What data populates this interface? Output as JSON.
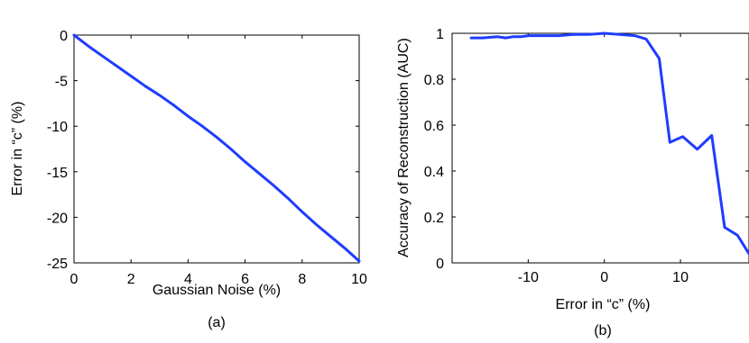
{
  "chart_data": [
    {
      "type": "line",
      "caption": "(a)",
      "xlabel": "Gaussian Noise (%)",
      "ylabel": "Error in “c” (%)",
      "xlim": [
        0,
        10
      ],
      "ylim": [
        -25,
        0
      ],
      "xticks": [
        0,
        2,
        4,
        6,
        8,
        10
      ],
      "xtick_labels": [
        "0",
        "2",
        "4",
        "6",
        "8",
        "10"
      ],
      "yticks": [
        0,
        -5,
        -10,
        -15,
        -20,
        -25
      ],
      "ytick_labels": [
        "0",
        "-5",
        "-10",
        "-15",
        "-20",
        "-25"
      ],
      "grid": false,
      "color": "#1f3cff",
      "series": [
        {
          "x": [
            0,
            0.5,
            1,
            1.5,
            2,
            2.5,
            3,
            3.5,
            4,
            4.5,
            5,
            5.5,
            6,
            6.5,
            7,
            7.5,
            8,
            8.5,
            9,
            9.5,
            10
          ],
          "y": [
            0,
            -1.2,
            -2.3,
            -3.4,
            -4.5,
            -5.6,
            -6.6,
            -7.7,
            -8.9,
            -10.0,
            -11.2,
            -12.5,
            -13.9,
            -15.2,
            -16.5,
            -17.9,
            -19.4,
            -20.8,
            -22.1,
            -23.4,
            -24.8
          ]
        }
      ]
    },
    {
      "type": "line",
      "caption": "(b)",
      "xlabel": "Error in “c” (%)",
      "ylabel": "Accuracy of Reconstruction (AUC)",
      "xlim": [
        -20,
        19
      ],
      "ylim": [
        0,
        1
      ],
      "xticks": [
        -10,
        0,
        10
      ],
      "xtick_labels": [
        "-10",
        "0",
        "10"
      ],
      "yticks": [
        0,
        0.2,
        0.4,
        0.6,
        0.8,
        1
      ],
      "ytick_labels": [
        "0",
        "0.2",
        "0.4",
        "0.6",
        "0.8",
        "1"
      ],
      "grid": false,
      "color": "#1f3cff",
      "series": [
        {
          "x": [
            -17.5,
            -16,
            -14,
            -13,
            -12,
            -11,
            -10,
            -8,
            -6,
            -4,
            -2,
            0,
            2,
            4,
            5.5,
            7.2,
            8.6,
            10.3,
            12.2,
            14.1,
            15.8,
            17.5,
            19
          ],
          "y": [
            0.98,
            0.98,
            0.985,
            0.98,
            0.985,
            0.985,
            0.99,
            0.99,
            0.99,
            0.995,
            0.995,
            1.0,
            0.995,
            0.99,
            0.975,
            0.89,
            0.525,
            0.55,
            0.495,
            0.555,
            0.155,
            0.12,
            0.04
          ]
        }
      ]
    }
  ]
}
